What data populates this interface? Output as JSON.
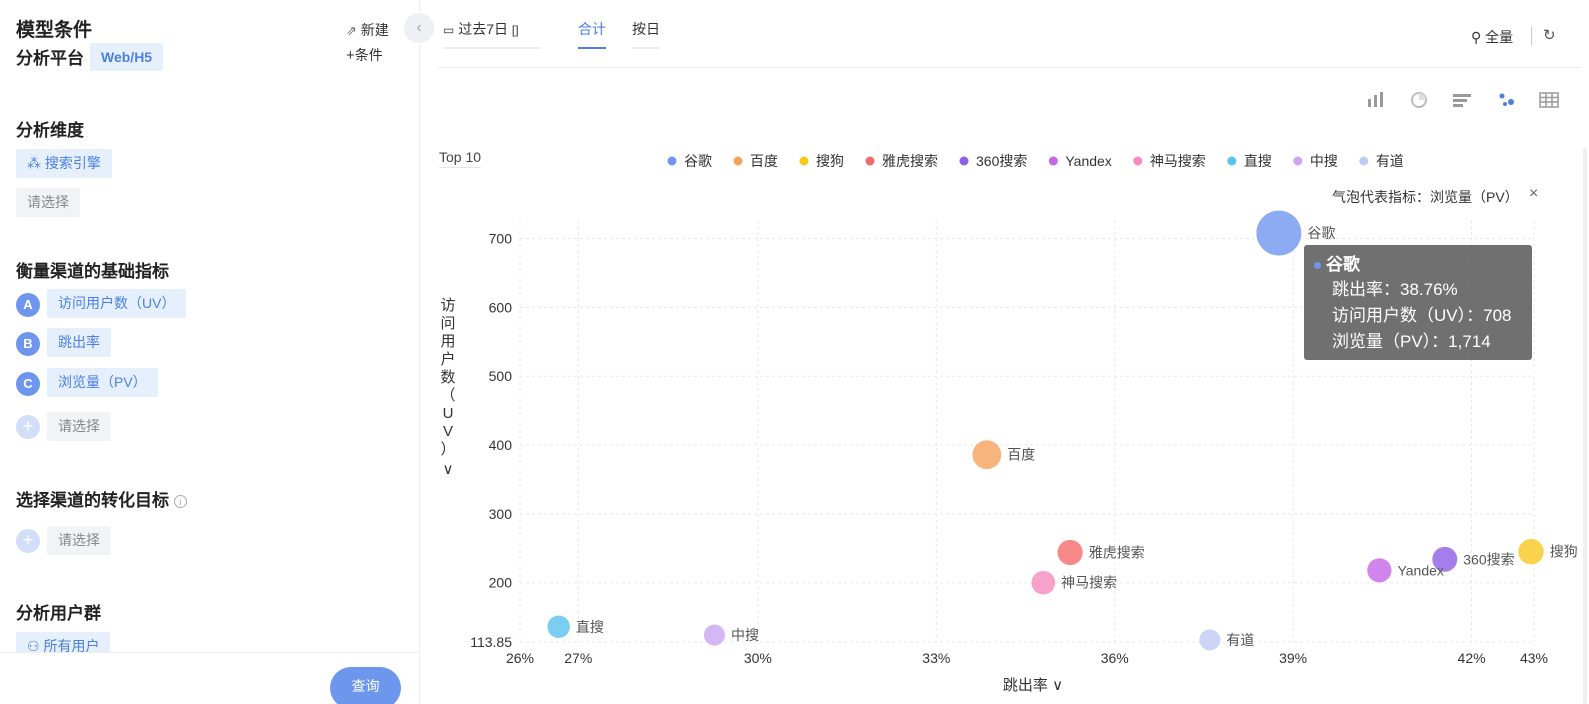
{
  "sidebar": {
    "model_title": "模型条件",
    "platform_label": "分析平台",
    "platform_value": "Web/H5",
    "new_label": "新建",
    "condition_label": "条件",
    "dimension_title": "分析维度",
    "dimension_value": "搜索引擎",
    "dimension_placeholder": "请选择",
    "metrics_title": "衡量渠道的基础指标",
    "metrics": [
      {
        "letter": "A",
        "label": "访问用户数（UV）"
      },
      {
        "letter": "B",
        "label": "跳出率"
      },
      {
        "letter": "C",
        "label": "浏览量（PV）"
      }
    ],
    "metrics_placeholder": "请选择",
    "goal_title": "选择渠道的转化目标",
    "goal_placeholder": "请选择",
    "usergroup_title": "分析用户群",
    "usergroup_value": "所有用户",
    "query_label": "查询"
  },
  "toolbar": {
    "date_range": "过去7日",
    "tab_total": "合计",
    "tab_daily": "按日",
    "full_label": "全量"
  },
  "chart_panel": {
    "top_label": "Top 10",
    "bubble_metric_label": "气泡代表指标：浏览量（PV）",
    "close_symbol": "×"
  },
  "tooltip": {
    "title": "谷歌",
    "line1": "跳出率：38.76%",
    "line2": "访问用户数（UV）：708",
    "line3": "浏览量（PV）：1,714"
  },
  "chart_data": {
    "type": "scatter",
    "xlabel": "跳出率",
    "ylabel": "访问用户数（UV）",
    "x_ticks": [
      "26%",
      "27%",
      "30%",
      "33%",
      "36%",
      "39%",
      "42%",
      "43%"
    ],
    "x_tick_values": [
      26.0,
      26.98,
      30,
      33,
      36,
      39,
      42,
      43.05
    ],
    "y_ticks": [
      "113.85",
      "200",
      "300",
      "400",
      "500",
      "600",
      "700"
    ],
    "y_tick_values": [
      113.85,
      200,
      300,
      400,
      500,
      600,
      700
    ],
    "xlim": [
      26.0,
      43.05
    ],
    "ylim": [
      113.85,
      727
    ],
    "bubble_metric": "浏览量（PV）",
    "series": [
      {
        "name": "谷歌",
        "color": "#6f96ef",
        "x": 38.76,
        "y": 708,
        "size": 1714
      },
      {
        "name": "百度",
        "color": "#f5a35c",
        "x": 33.85,
        "y": 386,
        "size": 420
      },
      {
        "name": "搜狗",
        "color": "#f7c81e",
        "x": 43.0,
        "y": 245,
        "size": 260
      },
      {
        "name": "雅虎搜索",
        "color": "#f76b6b",
        "x": 35.25,
        "y": 244,
        "size": 250
      },
      {
        "name": "360搜索",
        "color": "#8e5ee6",
        "x": 41.55,
        "y": 234,
        "size": 240
      },
      {
        "name": "Yandex",
        "color": "#c665e6",
        "x": 40.45,
        "y": 218,
        "size": 210
      },
      {
        "name": "神马搜索",
        "color": "#f58bbf",
        "x": 34.8,
        "y": 200,
        "size": 190
      },
      {
        "name": "直搜",
        "color": "#59c2ee",
        "x": 26.65,
        "y": 136,
        "size": 150
      },
      {
        "name": "中搜",
        "color": "#c9a6f2",
        "x": 29.27,
        "y": 124,
        "size": 110
      },
      {
        "name": "有道",
        "color": "#bfcbf2",
        "x": 37.6,
        "y": 117,
        "size": 110
      }
    ]
  }
}
